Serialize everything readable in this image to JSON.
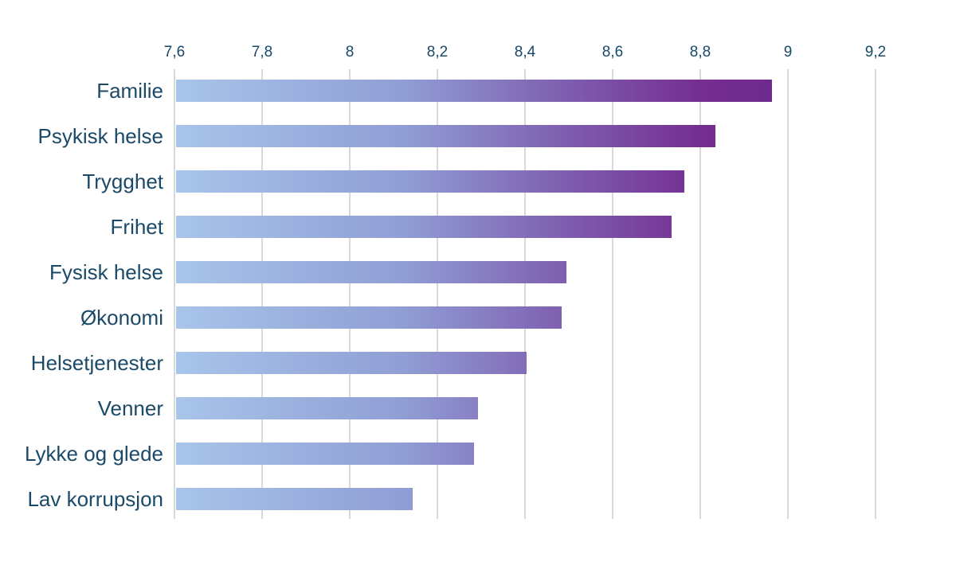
{
  "chart_data": {
    "type": "bar",
    "orientation": "horizontal",
    "title": "",
    "xlabel": "",
    "ylabel": "",
    "legend": "none",
    "grid": "vertical-gridlines-only",
    "categories": [
      "Familie",
      "Psykisk helse",
      "Trygghet",
      "Frihet",
      "Fysisk helse",
      "Økonomi",
      "Helsetjenester",
      "Venner",
      "Lykke og glede",
      "Lav korrupsjon"
    ],
    "values": [
      8.96,
      8.83,
      8.76,
      8.73,
      8.49,
      8.48,
      8.4,
      8.29,
      8.28,
      8.14
    ],
    "xlim": [
      7.6,
      9.2
    ],
    "xtick_labels": [
      "7,6",
      "7,8",
      "8",
      "8,2",
      "8,4",
      "8,6",
      "8,8",
      "9",
      "9,2"
    ],
    "xtick_values": [
      7.6,
      7.8,
      8.0,
      8.2,
      8.4,
      8.6,
      8.8,
      9.0,
      9.2
    ],
    "colors": {
      "bar_gradient_stops": [
        "#a8c5ea",
        "#909ed5",
        "#7d58ac",
        "#752e91",
        "#6e2a8e"
      ],
      "bar_gradient_positions": [
        0,
        38,
        68,
        88,
        100
      ],
      "gradient_anchor": "plot-area-shared-across-bars",
      "gridline": "#d9d9d9",
      "tick_text": "#17496b",
      "category_text": "#1b4a69",
      "background": "#ffffff"
    }
  }
}
